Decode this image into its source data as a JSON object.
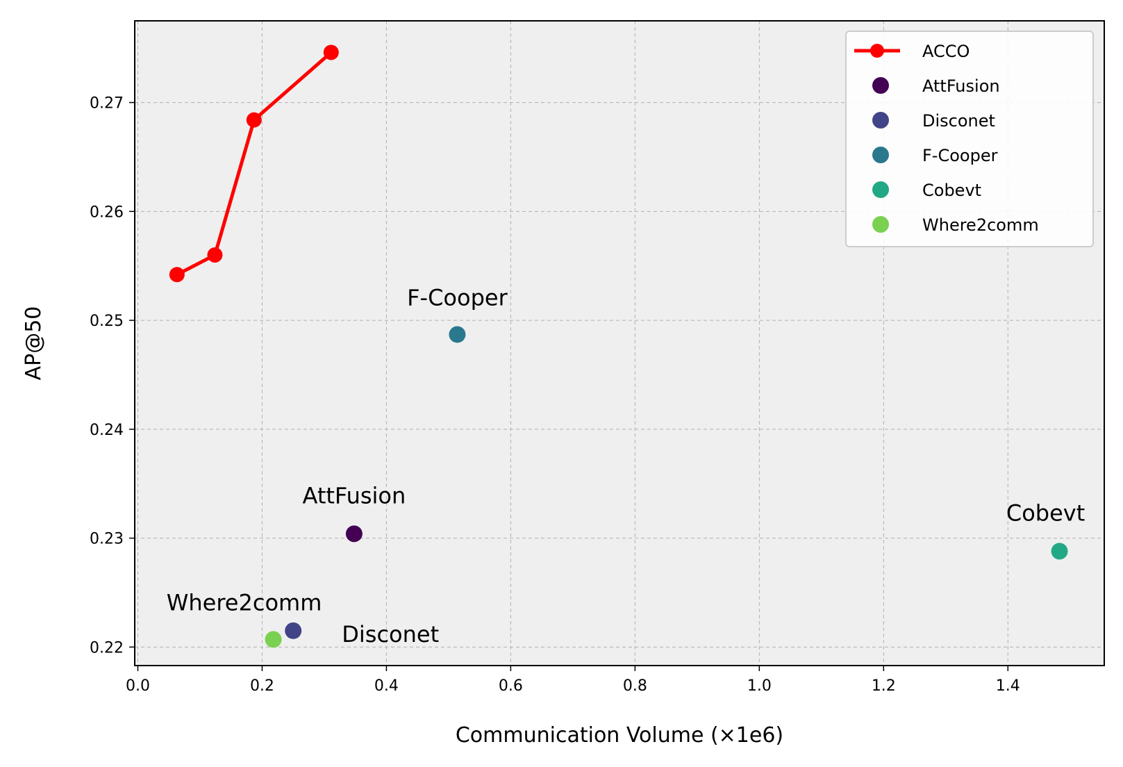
{
  "chart_data": {
    "type": "scatter",
    "xlabel": "Communication Volume (×1e6)",
    "ylabel": "AP@50",
    "xlim": [
      -0.005,
      1.555
    ],
    "ylim": [
      0.2183,
      0.2775
    ],
    "xticks": [
      "0.0",
      "0.2",
      "0.4",
      "0.6",
      "0.8",
      "1.0",
      "1.2",
      "1.4"
    ],
    "xtick_values": [
      0.0,
      0.2,
      0.4,
      0.6,
      0.8,
      1.0,
      1.2,
      1.4
    ],
    "yticks": [
      "0.22",
      "0.23",
      "0.24",
      "0.25",
      "0.26",
      "0.27"
    ],
    "ytick_values": [
      0.22,
      0.23,
      0.24,
      0.25,
      0.26,
      0.27
    ],
    "grid": true,
    "legend_position": "top-right",
    "series": [
      {
        "name": "ACCO",
        "kind": "line",
        "color": "#ff0000",
        "x": [
          0.063,
          0.124,
          0.187,
          0.311
        ],
        "y": [
          0.2542,
          0.256,
          0.2684,
          0.2746
        ]
      },
      {
        "name": "AttFusion",
        "kind": "point",
        "color": "#440154",
        "x": [
          0.348
        ],
        "y": [
          0.2304
        ],
        "label": "AttFusion"
      },
      {
        "name": "Disconet",
        "kind": "point",
        "color": "#414487",
        "x": [
          0.25
        ],
        "y": [
          0.2215
        ],
        "label": "Disconet"
      },
      {
        "name": "F-Cooper",
        "kind": "point",
        "color": "#2a788e",
        "x": [
          0.514
        ],
        "y": [
          0.2487
        ],
        "label": "F-Cooper"
      },
      {
        "name": "Cobevt",
        "kind": "point",
        "color": "#22a884",
        "x": [
          1.483
        ],
        "y": [
          0.2288
        ],
        "label": "Cobevt"
      },
      {
        "name": "Where2comm",
        "kind": "point",
        "color": "#7ad151",
        "x": [
          0.218
        ],
        "y": [
          0.2207
        ],
        "label": "Where2comm"
      }
    ]
  }
}
